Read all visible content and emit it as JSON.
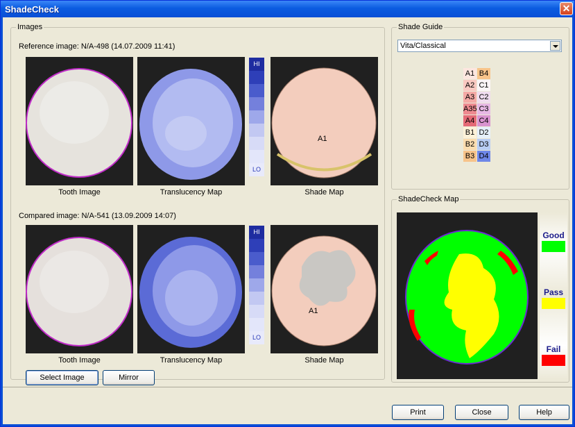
{
  "window": {
    "title": "ShadeCheck",
    "close_glyph": "✕"
  },
  "images_group": {
    "label": "Images",
    "reference_label": "Reference image:  N/A-498 (14.07.2009 11:41)",
    "compared_label": "Compared image:  N/A-541 (13.09.2009 14:07)",
    "captions": {
      "tooth": "Tooth Image",
      "translucency": "Translucency Map",
      "shade": "Shade Map"
    },
    "scale": {
      "hi": "HI",
      "lo": "LO",
      "colors": [
        "#1e2ca0",
        "#2e3fb8",
        "#4a5ccc",
        "#7480dc",
        "#9ea8ea",
        "#c2c8f2"
      ]
    },
    "reference_shade_label": "A1",
    "compared_shade_label": "A1",
    "buttons": {
      "select_image": "Select Image",
      "mirror": "Mirror"
    }
  },
  "shade_guide": {
    "label": "Shade Guide",
    "selected": "Vita/Classical",
    "cells": [
      {
        "label": "A1",
        "color": "#fde6df"
      },
      {
        "label": "B4",
        "color": "#f8c48a"
      },
      {
        "label": "A2",
        "color": "#f9c8c1"
      },
      {
        "label": "C1",
        "color": "#fbf5f8"
      },
      {
        "label": "A3",
        "color": "#f4a9a5"
      },
      {
        "label": "C2",
        "color": "#f0dcef"
      },
      {
        "label": "A35",
        "color": "#ee8a90"
      },
      {
        "label": "C3",
        "color": "#e7b8e4"
      },
      {
        "label": "A4",
        "color": "#e46a76"
      },
      {
        "label": "C4",
        "color": "#d993cf"
      },
      {
        "label": "B1",
        "color": "#fdf2d8"
      },
      {
        "label": "D2",
        "color": "#e6f0fb"
      },
      {
        "label": "B2",
        "color": "#fbdcae"
      },
      {
        "label": "D3",
        "color": "#b8cdf4"
      },
      {
        "label": "B3",
        "color": "#f7c38a"
      },
      {
        "label": "D4",
        "color": "#6f87e8"
      }
    ]
  },
  "shadecheck_map": {
    "label": "ShadeCheck Map",
    "legend": [
      {
        "label": "Good",
        "color": "#00ff00"
      },
      {
        "label": "Pass",
        "color": "#ffff00"
      },
      {
        "label": "Fail",
        "color": "#ff0000"
      }
    ]
  },
  "footer": {
    "print": "Print",
    "close": "Close",
    "help": "Help"
  }
}
